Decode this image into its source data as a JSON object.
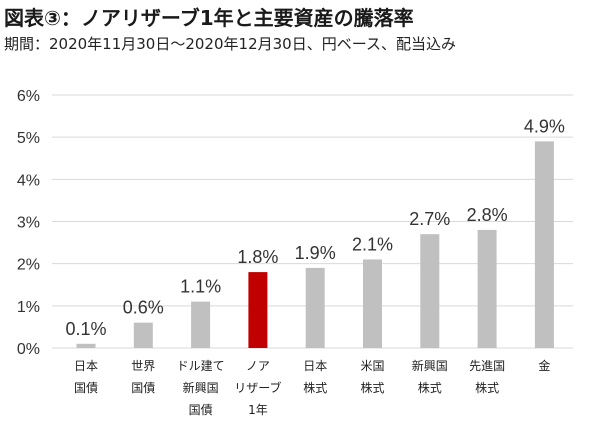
{
  "title": "図表③：ノアリザーブ1年と主要資産の騰落率",
  "subtitle": "期間：2020年11月30日～2020年12月30日、円ベース、配当込み",
  "colors": {
    "bar_default": "#c0c0c0",
    "bar_highlight": "#c00000",
    "gridline": "#d9d9d9"
  },
  "chart_data": {
    "type": "bar",
    "categories": [
      [
        "日本",
        "国債"
      ],
      [
        "世界",
        "国債"
      ],
      [
        "ドル建て",
        "新興国",
        "国債"
      ],
      [
        "ノア",
        "リザーブ",
        "1年"
      ],
      [
        "日本",
        "株式"
      ],
      [
        "米国",
        "株式"
      ],
      [
        "新興国",
        "株式"
      ],
      [
        "先進国",
        "株式"
      ],
      [
        "金"
      ]
    ],
    "values": [
      0.1,
      0.6,
      1.1,
      1.8,
      1.9,
      2.1,
      2.7,
      2.8,
      4.9
    ],
    "value_labels": [
      "0.1%",
      "0.6%",
      "1.1%",
      "1.8%",
      "1.9%",
      "2.1%",
      "2.7%",
      "2.8%",
      "4.9%"
    ],
    "highlight_index": 3,
    "ylim": [
      0,
      6
    ],
    "yticks": [
      "0%",
      "1%",
      "2%",
      "3%",
      "4%",
      "5%",
      "6%"
    ],
    "grid": true,
    "xlabel": "",
    "ylabel": ""
  }
}
